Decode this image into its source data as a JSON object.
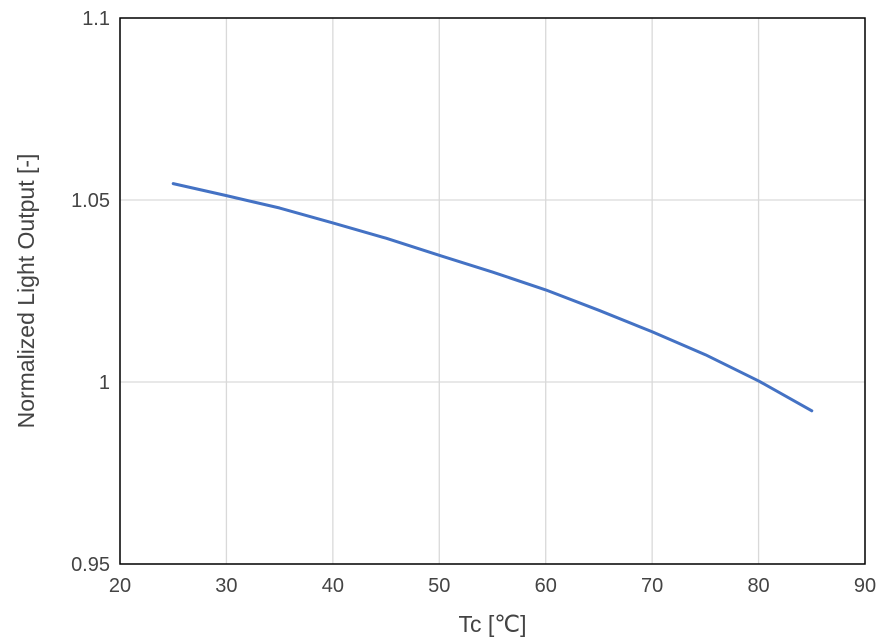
{
  "chart_data": {
    "type": "line",
    "xlabel": "Tc [℃]",
    "ylabel": "Normalized Light Output [-]",
    "xlim": [
      20,
      90
    ],
    "ylim": [
      0.95,
      1.1
    ],
    "x_ticks": [
      "20",
      "30",
      "40",
      "50",
      "60",
      "70",
      "80",
      "90"
    ],
    "y_ticks": [
      "0.95",
      "1",
      "1.05",
      "1.1"
    ],
    "grid": true,
    "legend": "none",
    "series": [
      {
        "color": "#4472c4",
        "x": [
          25,
          30,
          35,
          40,
          45,
          50,
          55,
          60,
          65,
          70,
          75,
          80,
          85
        ],
        "y": [
          1.0545,
          1.0512,
          1.0478,
          1.0437,
          1.0395,
          1.0348,
          1.0302,
          1.0253,
          1.0197,
          1.0138,
          1.0075,
          1.0003,
          0.9921
        ]
      }
    ]
  }
}
